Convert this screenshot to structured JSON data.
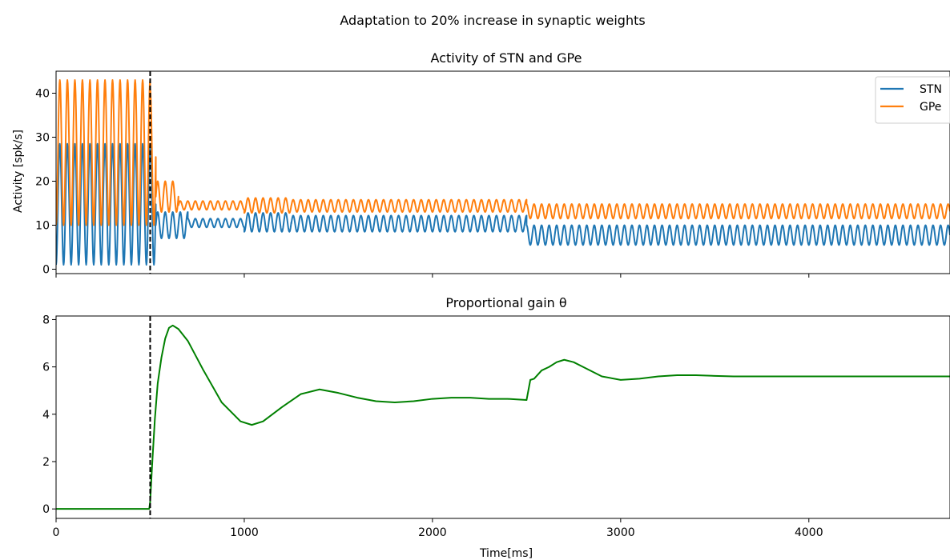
{
  "figure": {
    "suptitle": "Adaptation to 20% increase in synaptic weights"
  },
  "chart_data": [
    {
      "type": "line",
      "title": "Activity of STN and GPe",
      "xlabel": "",
      "ylabel": "Activity [spk/s]",
      "xlim": [
        0,
        4750
      ],
      "ylim": [
        -1,
        45
      ],
      "yticks": [
        0,
        10,
        20,
        30,
        40
      ],
      "xticks": [
        0,
        1000,
        2000,
        3000,
        4000
      ],
      "show_x_ticklabels": false,
      "legend_position": "upper-right",
      "event_line_x": 500,
      "series": [
        {
          "name": "STN",
          "color": "#1f77b4",
          "regimes": [
            {
              "from": 0,
              "to": 500,
              "low": 1,
              "high": 28.5,
              "period": 40
            },
            {
              "from": 500,
              "to": 530,
              "low": 1,
              "high": 28.5,
              "period": 40
            },
            {
              "from": 530,
              "to": 700,
              "low": 7,
              "high": 13,
              "period": 40
            },
            {
              "from": 700,
              "to": 1000,
              "low": 9.5,
              "high": 11.5,
              "period": 40
            },
            {
              "from": 1000,
              "to": 1250,
              "low": 8.5,
              "high": 12.8,
              "period": 40
            },
            {
              "from": 1250,
              "to": 2500,
              "low": 8.5,
              "high": 12.2,
              "period": 40
            },
            {
              "from": 2500,
              "to": 4750,
              "low": 5.5,
              "high": 10,
              "period": 40
            }
          ]
        },
        {
          "name": "GPe",
          "color": "#ff7f0e",
          "regimes": [
            {
              "from": 0,
              "to": 500,
              "low": 10,
              "high": 43,
              "period": 40
            },
            {
              "from": 500,
              "to": 530,
              "low": 10,
              "high": 41,
              "period": 40
            },
            {
              "from": 530,
              "to": 650,
              "low": 13,
              "high": 20,
              "period": 40
            },
            {
              "from": 650,
              "to": 1000,
              "low": 13.5,
              "high": 15.5,
              "period": 40
            },
            {
              "from": 1000,
              "to": 1250,
              "low": 12.8,
              "high": 16.2,
              "period": 40
            },
            {
              "from": 1250,
              "to": 2500,
              "low": 13,
              "high": 15.8,
              "period": 40
            },
            {
              "from": 2500,
              "to": 4750,
              "low": 11.5,
              "high": 14.8,
              "period": 40
            }
          ]
        }
      ]
    },
    {
      "type": "line",
      "title": "Proportional gain θ",
      "xlabel": "Time[ms]",
      "ylabel": "",
      "xlim": [
        0,
        4750
      ],
      "ylim": [
        -0.4,
        8.15
      ],
      "yticks": [
        0,
        2,
        4,
        6,
        8
      ],
      "xticks": [
        0,
        1000,
        2000,
        3000,
        4000
      ],
      "event_line_x": 500,
      "series": [
        {
          "color": "#008000",
          "x": [
            0,
            495,
            500,
            510,
            525,
            540,
            560,
            580,
            600,
            620,
            650,
            700,
            780,
            880,
            980,
            1040,
            1100,
            1200,
            1300,
            1400,
            1500,
            1600,
            1700,
            1800,
            1900,
            2000,
            2100,
            2200,
            2300,
            2400,
            2500,
            2520,
            2540,
            2580,
            2620,
            2660,
            2700,
            2750,
            2800,
            2900,
            3000,
            3100,
            3200,
            3300,
            3400,
            3500,
            3600,
            3700,
            3800,
            3900,
            4000,
            4200,
            4400,
            4600,
            4750
          ],
          "y": [
            0,
            0,
            0.3,
            1.8,
            3.8,
            5.3,
            6.4,
            7.2,
            7.65,
            7.75,
            7.6,
            7.1,
            5.9,
            4.5,
            3.7,
            3.55,
            3.7,
            4.3,
            4.85,
            5.05,
            4.9,
            4.7,
            4.55,
            4.5,
            4.55,
            4.65,
            4.7,
            4.7,
            4.65,
            4.65,
            4.6,
            5.45,
            5.5,
            5.85,
            6.0,
            6.2,
            6.3,
            6.2,
            6.0,
            5.6,
            5.45,
            5.5,
            5.6,
            5.65,
            5.65,
            5.62,
            5.6,
            5.6,
            5.6,
            5.6,
            5.6,
            5.6,
            5.6,
            5.6,
            5.6
          ]
        }
      ]
    }
  ]
}
